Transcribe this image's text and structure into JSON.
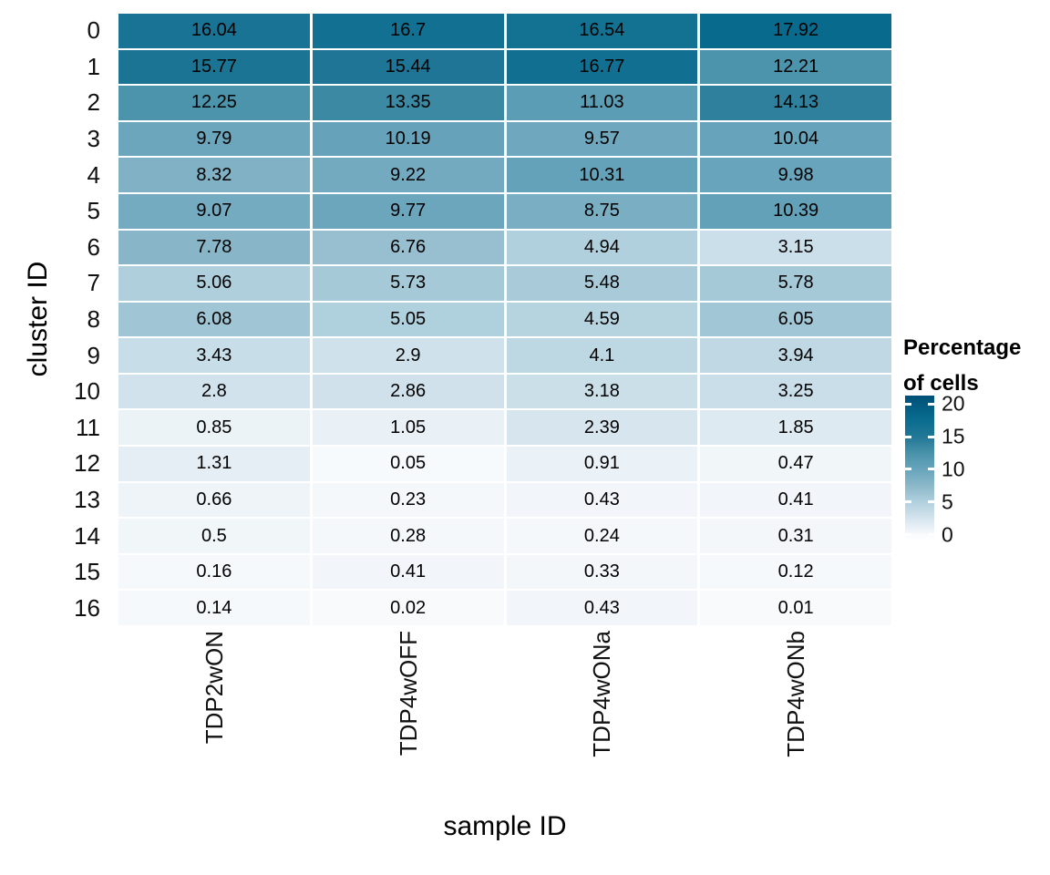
{
  "chart_data": {
    "type": "heatmap",
    "xlabel": "sample ID",
    "ylabel": "cluster ID",
    "columns": [
      "TDP2wON",
      "TDP4wOFF",
      "TDP4wONa",
      "TDP4wONb"
    ],
    "rows": [
      "0",
      "1",
      "2",
      "3",
      "4",
      "5",
      "6",
      "7",
      "8",
      "9",
      "10",
      "11",
      "12",
      "13",
      "14",
      "15",
      "16"
    ],
    "values": [
      [
        16.04,
        16.7,
        16.54,
        17.92
      ],
      [
        15.77,
        15.44,
        16.77,
        12.21
      ],
      [
        12.25,
        13.35,
        11.03,
        14.13
      ],
      [
        9.79,
        10.19,
        9.57,
        10.04
      ],
      [
        8.32,
        9.22,
        10.31,
        9.98
      ],
      [
        9.07,
        9.77,
        8.75,
        10.39
      ],
      [
        7.78,
        6.76,
        4.94,
        3.15
      ],
      [
        5.06,
        5.73,
        5.48,
        5.78
      ],
      [
        6.08,
        5.05,
        4.59,
        6.05
      ],
      [
        3.43,
        2.9,
        4.1,
        3.94
      ],
      [
        2.8,
        2.86,
        3.18,
        3.25
      ],
      [
        0.85,
        1.05,
        2.39,
        1.85
      ],
      [
        1.31,
        0.05,
        0.91,
        0.47
      ],
      [
        0.66,
        0.23,
        0.43,
        0.41
      ],
      [
        0.5,
        0.28,
        0.24,
        0.31
      ],
      [
        0.16,
        0.41,
        0.33,
        0.12
      ],
      [
        0.14,
        0.02,
        0.43,
        0.01
      ]
    ],
    "legend": {
      "title": "Percentage of cells",
      "ticks": [
        20,
        15,
        10,
        5,
        0
      ],
      "bar_range": [
        -0.9,
        21.3
      ]
    },
    "colorscale": {
      "stops": [
        [
          0,
          "#f8fafc"
        ],
        [
          2.5,
          "#d5e4ee"
        ],
        [
          5,
          "#b0d0dd"
        ],
        [
          7.5,
          "#8cb8ca"
        ],
        [
          10,
          "#68a4bb"
        ],
        [
          12.5,
          "#4892a9"
        ],
        [
          15,
          "#227796"
        ],
        [
          17.5,
          "#0a6d90"
        ],
        [
          20,
          "#005a7f"
        ],
        [
          21.3,
          "#005076"
        ]
      ],
      "background": "#ffffff"
    }
  }
}
